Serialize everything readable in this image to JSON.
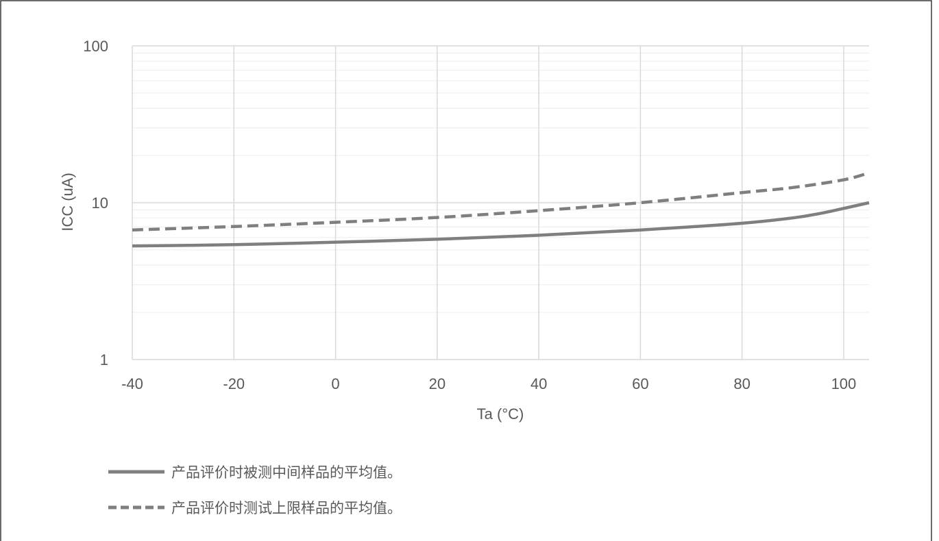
{
  "chart_data": {
    "type": "line",
    "title": "",
    "xlabel": "Ta (°C)",
    "ylabel": "ICC (uA)",
    "xlim": [
      -40,
      105
    ],
    "ylim": [
      1,
      100
    ],
    "yscale": "log",
    "x_ticks": [
      -40,
      -20,
      0,
      20,
      40,
      60,
      80,
      100
    ],
    "x_tick_labels": [
      "-40",
      "-20",
      "0",
      "20",
      "40",
      "60",
      "80",
      "100"
    ],
    "y_ticks": [
      1,
      10,
      100
    ],
    "y_tick_labels": [
      "1",
      "10",
      "100"
    ],
    "grid": true,
    "legend_position": "bottom-left",
    "series": [
      {
        "name": "产品评价时被测中间样品的平均值。",
        "style": "solid",
        "color": "#7f7f7f",
        "x": [
          -40,
          -20,
          0,
          20,
          40,
          60,
          80,
          90,
          95,
          100,
          105
        ],
        "y": [
          5.3,
          5.4,
          5.6,
          5.85,
          6.2,
          6.7,
          7.4,
          8.0,
          8.5,
          9.2,
          10.0
        ]
      },
      {
        "name": "产品评价时测试上限样品的平均值。",
        "style": "dashed",
        "color": "#7f7f7f",
        "x": [
          -40,
          -20,
          0,
          20,
          40,
          60,
          80,
          90,
          100,
          105
        ],
        "y": [
          6.7,
          7.05,
          7.5,
          8.05,
          8.9,
          10.0,
          11.6,
          12.5,
          14.0,
          15.5
        ]
      }
    ]
  }
}
